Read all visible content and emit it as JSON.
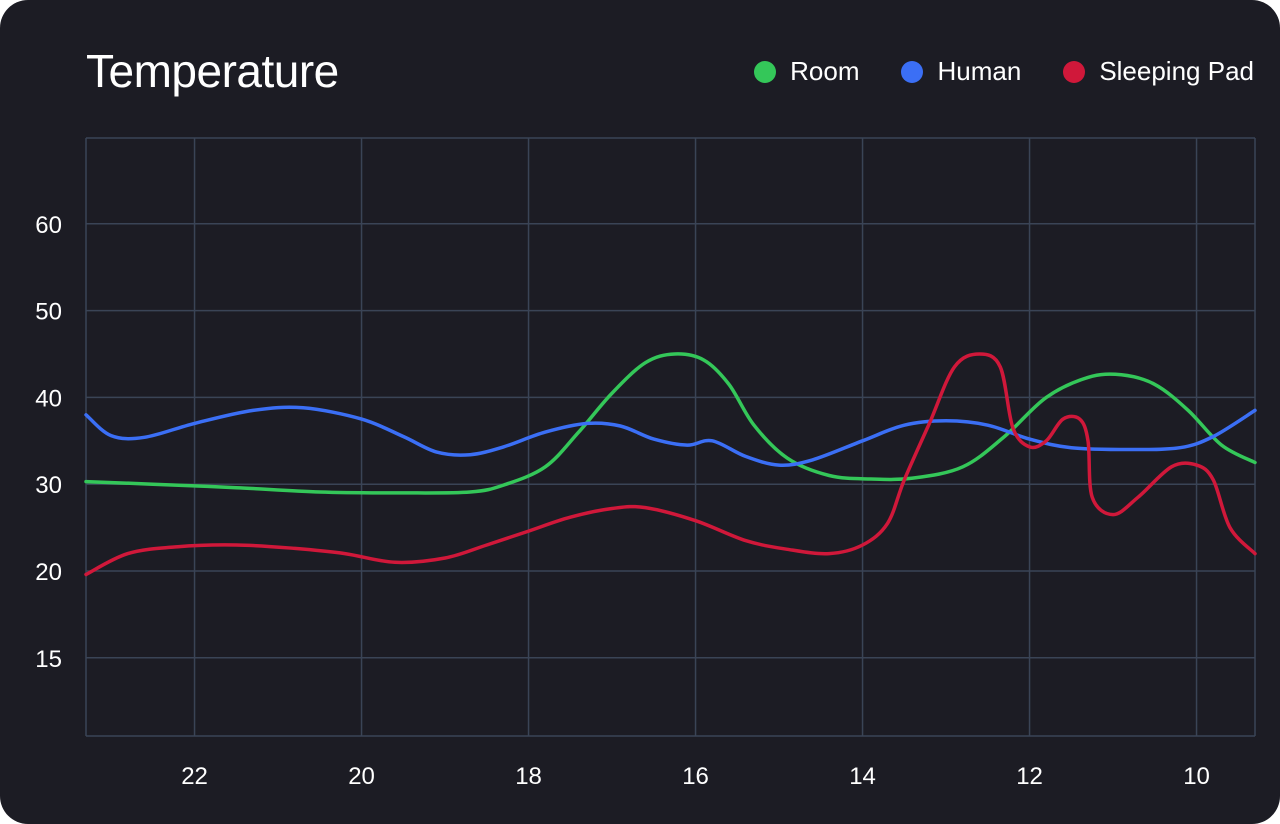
{
  "title": "Temperature",
  "legend": [
    {
      "label": "Room",
      "color": "#34c759"
    },
    {
      "label": "Human",
      "color": "#3b6ff5"
    },
    {
      "label": "Sleeping Pad",
      "color": "#d0183a"
    }
  ],
  "chart_data": {
    "type": "line",
    "title": "Temperature",
    "xlabel": "",
    "ylabel": "",
    "x_axis_reversed": true,
    "xlim": [
      23.3,
      9.3
    ],
    "x_ticks": [
      22,
      20,
      18,
      16,
      14,
      12,
      10
    ],
    "y_ticks": [
      "15",
      "20",
      "30",
      "40",
      "50",
      "60"
    ],
    "grid": true,
    "legend_position": "top-right",
    "series": [
      {
        "name": "Room",
        "color": "#34c759",
        "points": [
          [
            23.3,
            30.3
          ],
          [
            22.5,
            30.0
          ],
          [
            21.5,
            29.6
          ],
          [
            20.5,
            29.1
          ],
          [
            19.5,
            29.0
          ],
          [
            18.7,
            29.1
          ],
          [
            18.3,
            29.9
          ],
          [
            17.8,
            32.0
          ],
          [
            17.4,
            36.0
          ],
          [
            17.0,
            40.5
          ],
          [
            16.6,
            44.0
          ],
          [
            16.25,
            45.0
          ],
          [
            15.9,
            44.3
          ],
          [
            15.6,
            41.5
          ],
          [
            15.3,
            36.8
          ],
          [
            14.9,
            33.0
          ],
          [
            14.4,
            31.0
          ],
          [
            13.9,
            30.6
          ],
          [
            13.4,
            30.7
          ],
          [
            12.8,
            32.0
          ],
          [
            12.3,
            35.5
          ],
          [
            11.8,
            40.0
          ],
          [
            11.3,
            42.3
          ],
          [
            10.9,
            42.6
          ],
          [
            10.5,
            41.5
          ],
          [
            10.1,
            38.5
          ],
          [
            9.7,
            34.5
          ],
          [
            9.3,
            32.5
          ]
        ]
      },
      {
        "name": "Human",
        "color": "#3b6ff5",
        "points": [
          [
            23.3,
            38.0
          ],
          [
            23.0,
            35.6
          ],
          [
            22.6,
            35.4
          ],
          [
            22.0,
            37.0
          ],
          [
            21.3,
            38.5
          ],
          [
            20.7,
            38.8
          ],
          [
            20.0,
            37.5
          ],
          [
            19.5,
            35.5
          ],
          [
            19.1,
            33.7
          ],
          [
            18.7,
            33.4
          ],
          [
            18.3,
            34.3
          ],
          [
            17.8,
            36.0
          ],
          [
            17.3,
            37.0
          ],
          [
            16.9,
            36.7
          ],
          [
            16.5,
            35.2
          ],
          [
            16.1,
            34.5
          ],
          [
            15.8,
            35.0
          ],
          [
            15.4,
            33.2
          ],
          [
            15.0,
            32.2
          ],
          [
            14.6,
            32.8
          ],
          [
            14.0,
            35.0
          ],
          [
            13.5,
            36.8
          ],
          [
            13.0,
            37.3
          ],
          [
            12.5,
            36.8
          ],
          [
            12.0,
            35.2
          ],
          [
            11.5,
            34.2
          ],
          [
            10.8,
            34.0
          ],
          [
            10.2,
            34.2
          ],
          [
            9.8,
            35.5
          ],
          [
            9.3,
            38.5
          ]
        ]
      },
      {
        "name": "Sleeping Pad",
        "color": "#d0183a",
        "points": [
          [
            23.3,
            19.6
          ],
          [
            22.8,
            22.0
          ],
          [
            22.2,
            22.8
          ],
          [
            21.5,
            23.0
          ],
          [
            20.8,
            22.6
          ],
          [
            20.2,
            22.0
          ],
          [
            19.6,
            21.0
          ],
          [
            19.0,
            21.5
          ],
          [
            18.5,
            23.0
          ],
          [
            18.0,
            24.6
          ],
          [
            17.5,
            26.2
          ],
          [
            17.0,
            27.2
          ],
          [
            16.6,
            27.3
          ],
          [
            16.0,
            25.8
          ],
          [
            15.4,
            23.5
          ],
          [
            14.9,
            22.5
          ],
          [
            14.4,
            22.0
          ],
          [
            14.0,
            23.0
          ],
          [
            13.7,
            25.5
          ],
          [
            13.5,
            30.5
          ],
          [
            13.2,
            37.0
          ],
          [
            12.9,
            43.5
          ],
          [
            12.6,
            45.0
          ],
          [
            12.35,
            43.5
          ],
          [
            12.2,
            36.5
          ],
          [
            12.0,
            34.3
          ],
          [
            11.8,
            35.0
          ],
          [
            11.6,
            37.5
          ],
          [
            11.4,
            37.5
          ],
          [
            11.3,
            35.0
          ],
          [
            11.25,
            28.5
          ],
          [
            11.0,
            26.5
          ],
          [
            10.7,
            28.5
          ],
          [
            10.3,
            32.0
          ],
          [
            10.0,
            32.2
          ],
          [
            9.8,
            30.5
          ],
          [
            9.6,
            25.0
          ],
          [
            9.3,
            22.0
          ]
        ]
      }
    ]
  }
}
